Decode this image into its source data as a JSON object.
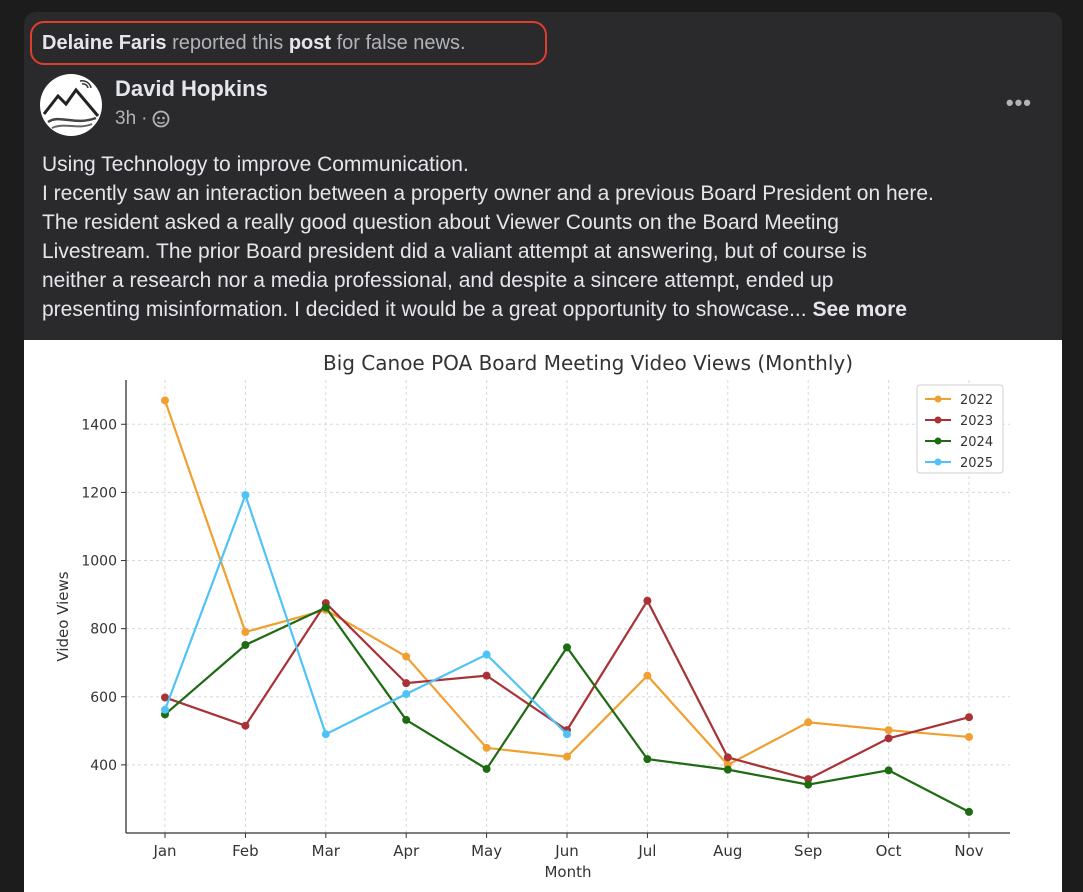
{
  "report": {
    "reporter": "Delaine Faris",
    "text1": "reported this",
    "object": "post",
    "text2": "for false news."
  },
  "post": {
    "author": "David Hopkins",
    "time": "3h",
    "separator": "·",
    "privacy_icon": "globe-icon",
    "more_icon": "more-horizontal-icon",
    "more_label": "•••",
    "lines": [
      "Using Technology to improve Communication.",
      "I recently saw an interaction between a property owner and a previous Board President on here.",
      "The resident asked a really good question about Viewer Counts on the Board Meeting",
      "Livestream.  The prior Board president did a valiant attempt at answering, but of course is",
      "neither a research nor a media professional, and despite a sincere attempt, ended up",
      "presenting misinformation.  I decided it would be a great opportunity to showcase..."
    ],
    "see_more": "See more"
  },
  "chart_data": {
    "type": "line",
    "title": "Big Canoe POA Board Meeting Video Views (Monthly)",
    "xlabel": "Month",
    "ylabel": "Video Views",
    "categories": [
      "Jan",
      "Feb",
      "Mar",
      "Apr",
      "May",
      "Jun",
      "Jul",
      "Aug",
      "Sep",
      "Oct",
      "Nov"
    ],
    "yticks": [
      400,
      600,
      800,
      1000,
      1200,
      1400
    ],
    "ylim": [
      200,
      1530
    ],
    "grid": true,
    "legend_position": "top-right",
    "series": [
      {
        "name": "2022",
        "color": "#f0a030",
        "values": [
          1470,
          790,
          855,
          718,
          450,
          424,
          662,
          400,
          525,
          502,
          482
        ]
      },
      {
        "name": "2023",
        "color": "#a83236",
        "values": [
          598,
          515,
          875,
          640,
          662,
          502,
          882,
          422,
          358,
          478,
          540
        ]
      },
      {
        "name": "2024",
        "color": "#1f6b14",
        "values": [
          548,
          752,
          862,
          532,
          388,
          745,
          417,
          386,
          342,
          384,
          262
        ]
      },
      {
        "name": "2025",
        "color": "#4fc3f7",
        "values": [
          562,
          1192,
          490,
          608,
          724,
          490,
          null,
          null,
          null,
          null,
          null
        ]
      }
    ]
  }
}
